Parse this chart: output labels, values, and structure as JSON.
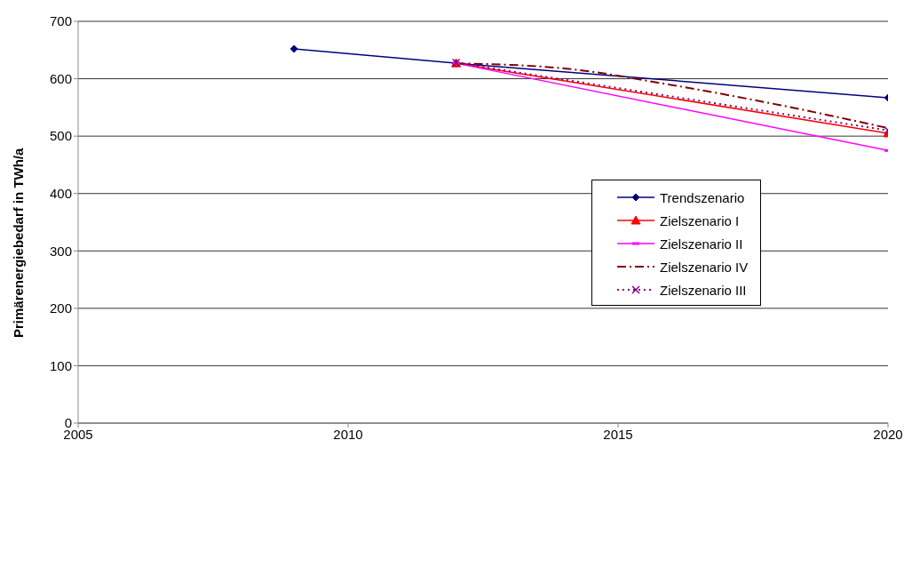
{
  "chart_data": {
    "type": "line",
    "ylabel": "Primärenergiebedarf in TWh/a",
    "xlim": [
      2005,
      2020
    ],
    "xticks": [
      2005,
      2010,
      2015,
      2020
    ],
    "ylim": [
      0,
      700
    ],
    "yticks": [
      0,
      100,
      200,
      300,
      400,
      500,
      600,
      700
    ],
    "grid": "y",
    "legend": "right",
    "series": [
      {
        "name": "Trendszenario",
        "color": "#000080",
        "marker": "diamond",
        "line_style": "solid",
        "x": [
          2009,
          2012,
          2020
        ],
        "values": [
          652,
          627,
          567
        ]
      },
      {
        "name": "Zielszenario I",
        "color": "#ff0000",
        "marker": "triangle",
        "line_style": "solid",
        "x": [
          2012,
          2020
        ],
        "values": [
          627,
          505
        ]
      },
      {
        "name": "Zielszenario II",
        "color": "#ff00ff",
        "marker": "square",
        "line_style": "solid",
        "x": [
          2012,
          2020
        ],
        "values": [
          627,
          475
        ]
      },
      {
        "name": "Zielszenario IV",
        "color": "#800000",
        "marker": "none",
        "line_style": "dashed",
        "x": [
          2012,
          2014,
          2016,
          2018,
          2020
        ],
        "values": [
          627,
          618,
          589,
          554,
          514
        ]
      },
      {
        "name": "Zielszenario III",
        "color": "#800080",
        "marker": "cross",
        "line_style": "dotted",
        "x": [
          2012,
          2020
        ],
        "values": [
          628,
          510
        ]
      }
    ]
  }
}
